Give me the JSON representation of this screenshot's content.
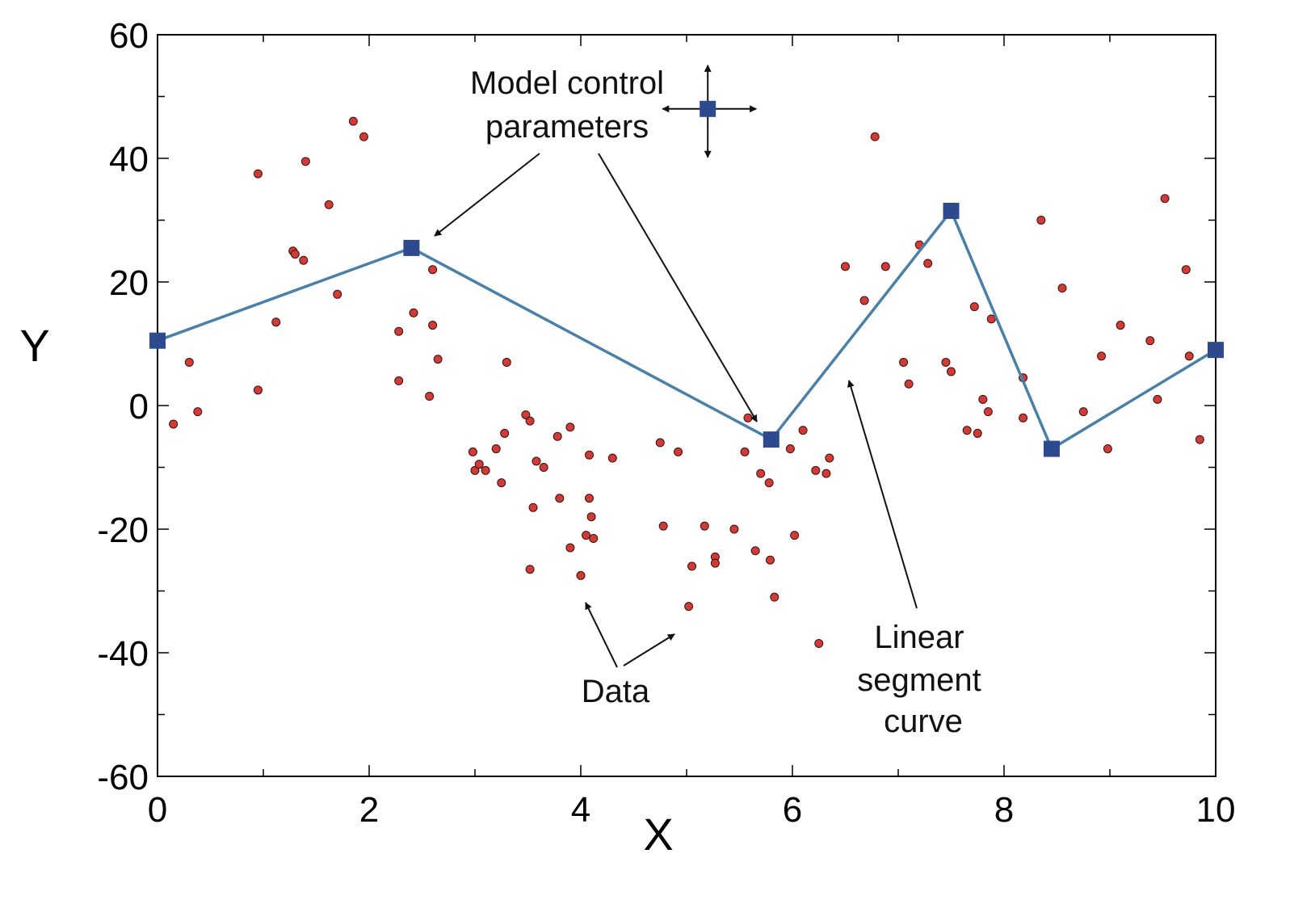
{
  "chart_data": {
    "type": "scatter",
    "title": "",
    "xlabel": "X",
    "ylabel": "Y",
    "xlim": [
      0,
      10
    ],
    "ylim": [
      -60,
      60
    ],
    "x_ticks": [
      "0",
      "2",
      "4",
      "6",
      "8",
      "10"
    ],
    "y_ticks": [
      "60",
      "40",
      "20",
      "0",
      "-20",
      "-40",
      "-60"
    ],
    "grid": false,
    "colors": {
      "data": "#d13b36",
      "curve": "#4a80a8",
      "control": "#2d4a8f",
      "axis": "#000000"
    },
    "series": [
      {
        "kind": "scatter",
        "points": [
          [
            0.15,
            -3
          ],
          [
            0.3,
            7
          ],
          [
            0.38,
            -1
          ],
          [
            0.95,
            2.5
          ],
          [
            0.95,
            37.5
          ],
          [
            1.12,
            13.5
          ],
          [
            1.28,
            25
          ],
          [
            1.3,
            24.5
          ],
          [
            1.38,
            23.5
          ],
          [
            1.4,
            39.5
          ],
          [
            1.62,
            32.5
          ],
          [
            1.7,
            18
          ],
          [
            1.85,
            46
          ],
          [
            1.95,
            43.5
          ],
          [
            2.28,
            12
          ],
          [
            2.28,
            4
          ],
          [
            2.42,
            15
          ],
          [
            2.57,
            1.5
          ],
          [
            2.6,
            22
          ],
          [
            2.6,
            13
          ],
          [
            2.65,
            7.5
          ],
          [
            2.98,
            -7.5
          ],
          [
            3.0,
            -10.5
          ],
          [
            3.04,
            -9.5
          ],
          [
            3.1,
            -10.5
          ],
          [
            3.2,
            -7
          ],
          [
            3.28,
            -4.5
          ],
          [
            3.25,
            -12.5
          ],
          [
            3.3,
            7
          ],
          [
            3.48,
            -1.5
          ],
          [
            3.52,
            -2.5
          ],
          [
            3.55,
            -16.5
          ],
          [
            3.58,
            -9
          ],
          [
            3.65,
            -10
          ],
          [
            3.52,
            -26.5
          ],
          [
            3.78,
            -5
          ],
          [
            3.8,
            -15
          ],
          [
            3.9,
            -3.5
          ],
          [
            3.9,
            -23
          ],
          [
            4.0,
            -27.5
          ],
          [
            4.05,
            -21
          ],
          [
            4.08,
            -8
          ],
          [
            4.08,
            -15
          ],
          [
            4.1,
            -18
          ],
          [
            4.12,
            -21.5
          ],
          [
            4.3,
            -8.5
          ],
          [
            4.75,
            -6
          ],
          [
            4.78,
            -19.5
          ],
          [
            4.92,
            -7.5
          ],
          [
            5.02,
            -32.5
          ],
          [
            5.05,
            -26
          ],
          [
            5.17,
            -19.5
          ],
          [
            5.27,
            -24.5
          ],
          [
            5.27,
            -25.5
          ],
          [
            5.45,
            -20
          ],
          [
            5.55,
            -7.5
          ],
          [
            5.58,
            -2
          ],
          [
            5.65,
            -23.5
          ],
          [
            5.7,
            -11
          ],
          [
            5.78,
            -12.5
          ],
          [
            5.79,
            -25
          ],
          [
            5.83,
            -31
          ],
          [
            5.98,
            -7
          ],
          [
            6.02,
            -21
          ],
          [
            6.1,
            -4
          ],
          [
            6.22,
            -10.5
          ],
          [
            6.25,
            -38.5
          ],
          [
            6.32,
            -11
          ],
          [
            6.35,
            -8.5
          ],
          [
            6.5,
            22.5
          ],
          [
            6.68,
            17
          ],
          [
            6.78,
            43.5
          ],
          [
            6.88,
            22.5
          ],
          [
            7.05,
            7
          ],
          [
            7.1,
            3.5
          ],
          [
            7.2,
            26
          ],
          [
            7.28,
            23
          ],
          [
            7.45,
            7
          ],
          [
            7.5,
            5.5
          ],
          [
            7.65,
            -4
          ],
          [
            7.72,
            16
          ],
          [
            7.75,
            -4.5
          ],
          [
            7.8,
            1
          ],
          [
            7.85,
            -1
          ],
          [
            7.88,
            14
          ],
          [
            8.18,
            4.5
          ],
          [
            8.18,
            -2
          ],
          [
            8.35,
            30
          ],
          [
            8.55,
            19
          ],
          [
            8.75,
            -1
          ],
          [
            8.92,
            8
          ],
          [
            8.98,
            -7
          ],
          [
            9.1,
            13
          ],
          [
            9.38,
            10.5
          ],
          [
            9.45,
            1
          ],
          [
            9.52,
            33.5
          ],
          [
            9.72,
            22
          ],
          [
            9.75,
            8
          ],
          [
            9.85,
            -5.5
          ]
        ]
      },
      {
        "kind": "line",
        "points": [
          [
            0,
            10.5
          ],
          [
            2.4,
            25.5
          ],
          [
            5.8,
            -5.5
          ],
          [
            7.5,
            31.5
          ],
          [
            8.45,
            -7
          ],
          [
            10,
            9
          ]
        ]
      }
    ],
    "control_marker": [
      5.2,
      48
    ],
    "annotations": {
      "control_line1": "Model control",
      "control_line2": "parameters",
      "data_label": "Data",
      "curve_line1": "Linear",
      "curve_line2": "segment",
      "curve_line3": "curve"
    }
  }
}
